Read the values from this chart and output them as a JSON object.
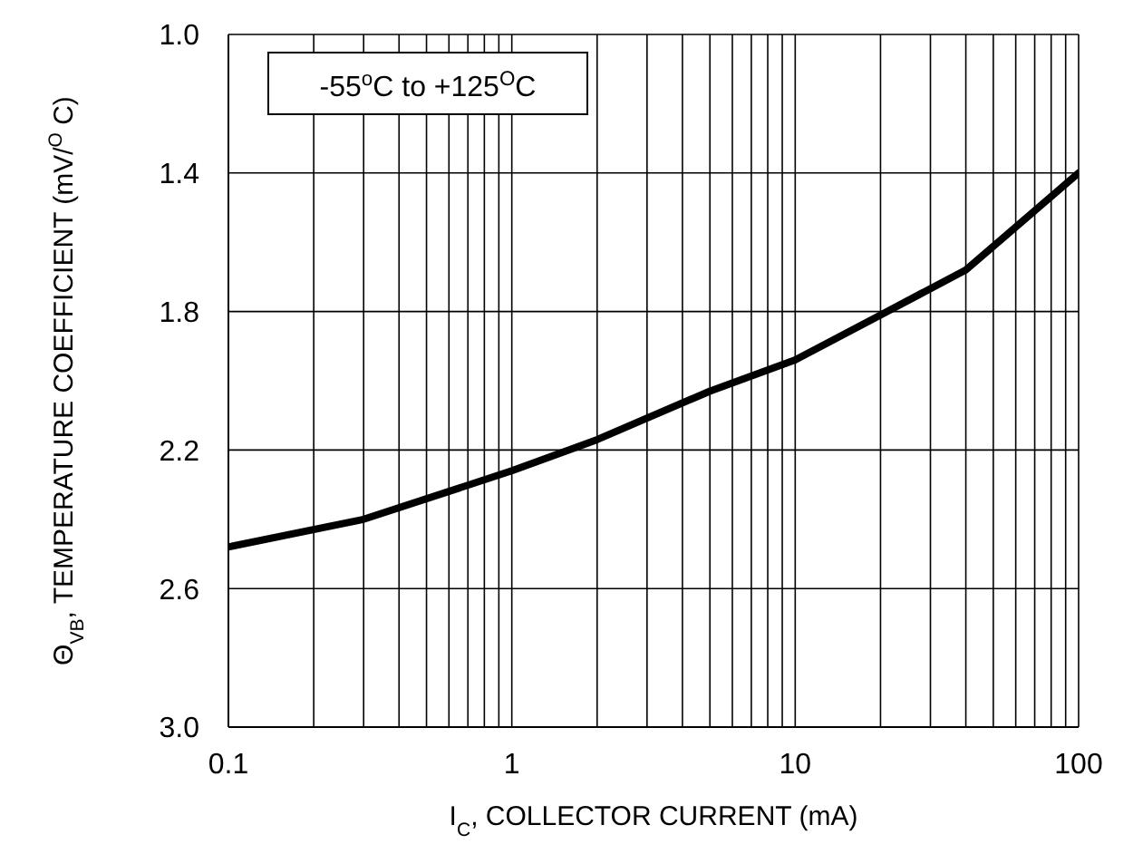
{
  "chart_data": {
    "type": "line",
    "xlabel": "I$_{C}$, COLLECTOR CURRENT (mA)",
    "ylabel": "Θ$_{VB}$, TEMPERATURE COEFFICIENT (mV/$^{O}$ C)",
    "annotations": [
      "-55$^{o}$C to +125$^{O}$C"
    ],
    "log": "x",
    "grid": true,
    "marker": "none",
    "line_style": "solid",
    "xlim": [
      0.1,
      100
    ],
    "ylim": [
      3.0,
      1.0
    ],
    "xticks": [
      0.1,
      {
        "value": 0.2,
        "label": null
      },
      {
        "value": 0.3,
        "label": null
      },
      {
        "value": 0.4,
        "label": null
      },
      {
        "value": 0.5,
        "label": null
      },
      {
        "value": 0.6,
        "label": null
      },
      {
        "value": 0.7,
        "label": null
      },
      {
        "value": 0.8,
        "label": null
      },
      {
        "value": 0.9,
        "label": null
      },
      1,
      {
        "value": 2,
        "label": null
      },
      {
        "value": 3,
        "label": null
      },
      {
        "value": 4,
        "label": null
      },
      {
        "value": 5,
        "label": null
      },
      {
        "value": 6,
        "label": null
      },
      {
        "value": 7,
        "label": null
      },
      {
        "value": 8,
        "label": null
      },
      {
        "value": 9,
        "label": null
      },
      10,
      {
        "value": 20,
        "label": null
      },
      {
        "value": 30,
        "label": null
      },
      {
        "value": 40,
        "label": null
      },
      {
        "value": 50,
        "label": null
      },
      {
        "value": 60,
        "label": null
      },
      {
        "value": 70,
        "label": null
      },
      {
        "value": 80,
        "label": null
      },
      {
        "value": 90,
        "label": null
      },
      100
    ],
    "yticks": [
      {
        "value": 1.0,
        "label": "1.0"
      },
      {
        "value": 1.4,
        "label": "1.4"
      },
      {
        "value": 1.8,
        "label": "1.8"
      },
      {
        "value": 2.2,
        "label": "2.2"
      },
      {
        "value": 2.6,
        "label": "2.6"
      },
      {
        "value": 3.0,
        "label": "3.0"
      }
    ],
    "series": [
      {
        "color": "#000000",
        "x": [
          0.1,
          0.3,
          1,
          2,
          5,
          10,
          20,
          40,
          100
        ],
        "values": [
          2.48,
          2.4,
          2.26,
          2.17,
          2.03,
          1.94,
          1.81,
          1.68,
          1.4
        ]
      }
    ]
  }
}
